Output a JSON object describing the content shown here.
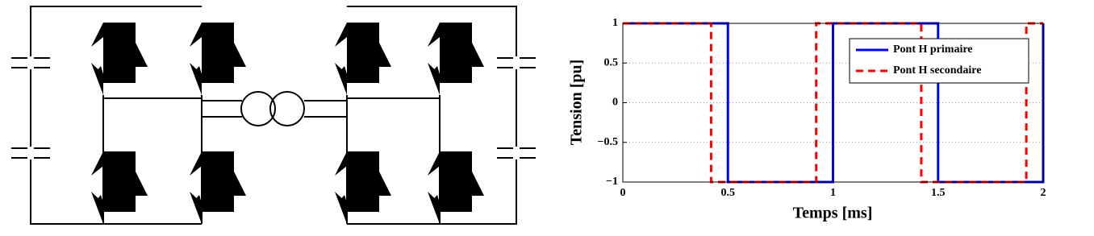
{
  "chart_data": {
    "type": "line",
    "xlabel": "Temps [ms]",
    "ylabel": "Tension [pu]",
    "xlim": [
      0,
      2
    ],
    "ylim": [
      -1,
      1
    ],
    "xticks": [
      0,
      0.5,
      1,
      1.5,
      2
    ],
    "yticks": [
      {
        "value": -1,
        "label": "−1"
      },
      {
        "value": -0.5,
        "label": "−0.5"
      },
      0,
      0.5,
      1
    ],
    "grid": true,
    "legend": "upper right",
    "series": [
      {
        "name": "Pont H primaire",
        "color": "#0000ff",
        "dash": "solid",
        "x": [
          0,
          0.5,
          0.5,
          1,
          1,
          1.5,
          1.5,
          2,
          2
        ],
        "values": [
          1,
          1,
          -1,
          -1,
          1,
          1,
          -1,
          -1,
          1
        ]
      },
      {
        "name": "Pont H secondaire",
        "color": "#ff0000",
        "dash": "dashed",
        "x": [
          0,
          0.42,
          0.42,
          0.92,
          0.92,
          1.42,
          1.42,
          1.92,
          1.92,
          2
        ],
        "values": [
          1,
          1,
          -1,
          -1,
          1,
          1,
          -1,
          -1,
          1,
          1
        ]
      }
    ]
  }
}
